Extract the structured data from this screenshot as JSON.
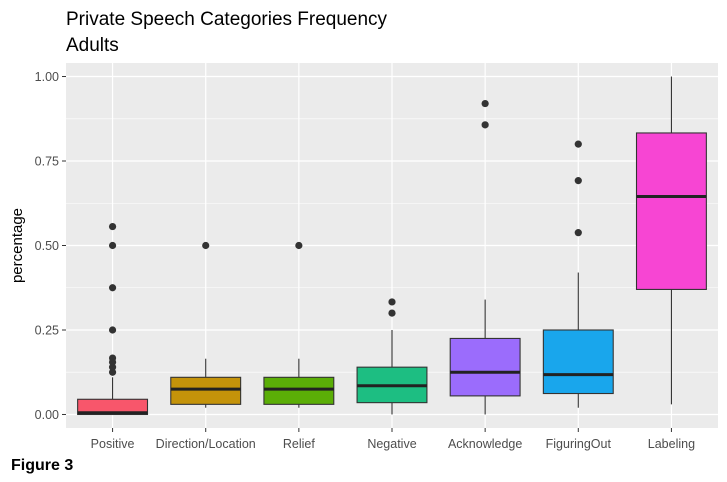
{
  "figure_label": "Figure 3",
  "chart_data": {
    "type": "boxplot",
    "title": "Private Speech Categories Frequency",
    "subtitle": "Adults",
    "xlabel": "",
    "ylabel": "percentage",
    "ylim": [
      -0.04,
      1.04
    ],
    "yticks": [
      0.0,
      0.25,
      0.5,
      0.75,
      1.0
    ],
    "ytick_labels": [
      "0.00",
      "0.25",
      "0.50",
      "0.75",
      "1.00"
    ],
    "grid": true,
    "categories": [
      "Positive",
      "Direction/Location",
      "Relief",
      "Negative",
      "Acknowledge",
      "FiguringOut",
      "Labeling"
    ],
    "colors": [
      "#F8566B",
      "#C4930A",
      "#5BAE07",
      "#1DBE82",
      "#9B6CFC",
      "#19A6EC",
      "#F745D3"
    ],
    "boxes": [
      {
        "whisker_low": 0.0,
        "q1": 0.0,
        "median": 0.005,
        "q3": 0.045,
        "whisker_high": 0.11,
        "outliers": [
          0.125,
          0.14,
          0.155,
          0.167,
          0.25,
          0.375,
          0.5,
          0.556
        ]
      },
      {
        "whisker_low": 0.02,
        "q1": 0.03,
        "median": 0.075,
        "q3": 0.11,
        "whisker_high": 0.165,
        "outliers": [
          0.5
        ]
      },
      {
        "whisker_low": 0.02,
        "q1": 0.03,
        "median": 0.075,
        "q3": 0.11,
        "whisker_high": 0.165,
        "outliers": [
          0.5
        ]
      },
      {
        "whisker_low": 0.0,
        "q1": 0.035,
        "median": 0.085,
        "q3": 0.14,
        "whisker_high": 0.25,
        "outliers": [
          0.3,
          0.333
        ]
      },
      {
        "whisker_low": 0.0,
        "q1": 0.055,
        "median": 0.125,
        "q3": 0.225,
        "whisker_high": 0.34,
        "outliers": [
          0.857,
          0.92
        ]
      },
      {
        "whisker_low": 0.02,
        "q1": 0.062,
        "median": 0.118,
        "q3": 0.25,
        "whisker_high": 0.42,
        "outliers": [
          0.538,
          0.692,
          0.8
        ]
      },
      {
        "whisker_low": 0.03,
        "q1": 0.37,
        "median": 0.645,
        "q3": 0.833,
        "whisker_high": 1.0,
        "outliers": []
      }
    ]
  }
}
